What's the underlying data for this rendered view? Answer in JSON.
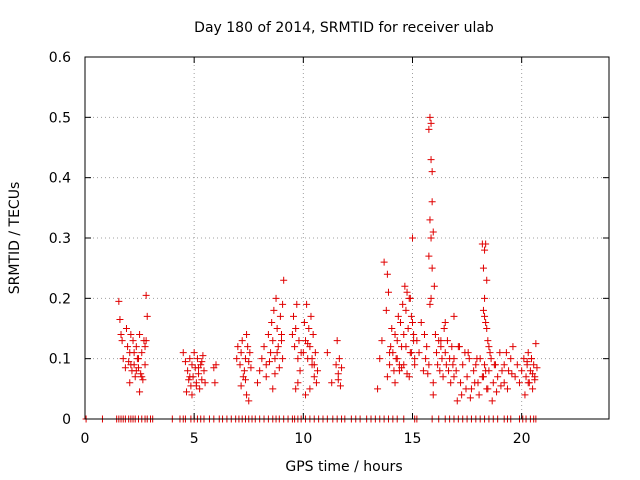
{
  "chart_data": {
    "type": "scatter",
    "title": "Day 180 of 2014, SRMTID for receiver ulab",
    "xlabel": "GPS time / hours",
    "ylabel": "SRMTID / TECUs",
    "xlim": [
      0,
      24
    ],
    "ylim": [
      0,
      0.6
    ],
    "xticks": [
      0,
      5,
      10,
      15,
      20
    ],
    "xtick_labels": [
      "0",
      "5",
      "10",
      "15",
      "20"
    ],
    "yticks": [
      0,
      0.1,
      0.2,
      0.3,
      0.4,
      0.5,
      0.6
    ],
    "ytick_labels": [
      "0",
      "0.1",
      "0.2",
      "0.3",
      "0.4",
      "0.5",
      "0.6"
    ],
    "grid": true,
    "marker": "+",
    "color": "#e00000",
    "series": [
      {
        "name": "SRMTID",
        "x": [
          0.05,
          0.8,
          1.45,
          1.55,
          1.65,
          1.75,
          1.85,
          2.0,
          2.1,
          2.2,
          2.3,
          2.45,
          2.6,
          2.75,
          2.85,
          3.0,
          3.1,
          4.0,
          4.35,
          4.5,
          4.6,
          4.85,
          5.0,
          5.15,
          5.3,
          5.45,
          5.7,
          5.9,
          6.15,
          6.3,
          6.5,
          6.7,
          6.9,
          7.05,
          7.2,
          7.35,
          7.5,
          7.65,
          7.8,
          8.0,
          8.2,
          8.4,
          8.6,
          8.75,
          8.9,
          9.1,
          9.3,
          9.5,
          9.6,
          9.75,
          9.9,
          10.1,
          10.3,
          10.5,
          10.7,
          10.9,
          11.1,
          11.35,
          11.55,
          11.75,
          11.9,
          12.2,
          12.4,
          12.6,
          12.9,
          13.1,
          13.3,
          13.5,
          13.7,
          13.9,
          14.1,
          14.3,
          14.6,
          15.1,
          15.2,
          15.9,
          16.2,
          16.5,
          16.7,
          16.9,
          17.1,
          17.3,
          17.5,
          17.7,
          17.9,
          18.1,
          18.3,
          18.5,
          18.7,
          18.9,
          19.2,
          19.35,
          19.5,
          19.9,
          20.05,
          20.2,
          20.4,
          20.55,
          20.65,
          1.55,
          1.6,
          1.7,
          1.75,
          1.85,
          1.9,
          1.95,
          2.0,
          2.05,
          2.1,
          2.15,
          2.2,
          2.25,
          2.3,
          2.35,
          2.4,
          2.45,
          2.5,
          2.55,
          2.6,
          2.65,
          2.7,
          2.75,
          2.8,
          2.85,
          1.65,
          2.25,
          2.45,
          2.75,
          2.1,
          2.35,
          2.6,
          2.8,
          2.05,
          2.5,
          4.5,
          4.6,
          4.7,
          4.75,
          4.8,
          4.85,
          4.9,
          4.95,
          5.0,
          5.05,
          5.1,
          5.15,
          5.2,
          5.25,
          5.3,
          5.35,
          5.4,
          5.45,
          5.5,
          4.65,
          4.9,
          5.2,
          5.35,
          4.8,
          5.1,
          5.9,
          6.0,
          5.95,
          6.95,
          7.0,
          7.1,
          7.15,
          7.2,
          7.3,
          7.35,
          7.4,
          7.45,
          7.5,
          7.55,
          7.6,
          7.25,
          7.4,
          7.5,
          7.15,
          7.35,
          7.9,
          8.0,
          8.1,
          8.2,
          8.3,
          8.4,
          8.5,
          8.55,
          8.6,
          8.65,
          8.7,
          8.75,
          8.8,
          8.85,
          8.9,
          8.95,
          9.0,
          9.05,
          9.1,
          8.3,
          8.6,
          8.8,
          9.0,
          8.45,
          8.7,
          9.05,
          9.5,
          9.55,
          9.6,
          9.65,
          9.7,
          9.75,
          9.8,
          9.85,
          9.9,
          9.65,
          9.75,
          10.0,
          10.05,
          10.1,
          10.15,
          10.2,
          10.25,
          10.3,
          10.35,
          10.4,
          10.45,
          10.5,
          10.55,
          10.6,
          10.65,
          10.1,
          10.3,
          10.5,
          10.2,
          10.4,
          11.1,
          11.3,
          11.5,
          11.55,
          11.6,
          11.65,
          11.7,
          11.75,
          11.6,
          13.4,
          13.5,
          13.6,
          13.7,
          13.8,
          13.85,
          13.9,
          13.95,
          14.0,
          14.05,
          14.1,
          14.15,
          14.2,
          14.25,
          14.3,
          14.35,
          14.4,
          14.45,
          14.5,
          14.55,
          14.6,
          14.65,
          14.7,
          14.75,
          14.8,
          14.85,
          14.9,
          14.95,
          15.0,
          15.05,
          15.1,
          13.85,
          13.95,
          14.2,
          14.4,
          14.6,
          14.7,
          14.85,
          14.95,
          15.0,
          15.05,
          14.3,
          14.5,
          14.75,
          14.9,
          15.1,
          15.2,
          15.3,
          15.4,
          15.5,
          15.55,
          15.6,
          15.65,
          15.7,
          15.75,
          15.8,
          15.85,
          15.9,
          15.95,
          16.0,
          16.05,
          16.1,
          16.15,
          16.2,
          16.25,
          16.3,
          16.35,
          16.4,
          16.45,
          16.5,
          16.55,
          16.6,
          16.65,
          16.7,
          16.75,
          16.8,
          16.85,
          16.9,
          15.75,
          15.8,
          15.85,
          15.9,
          15.8,
          15.85,
          15.9,
          15.75,
          15.85,
          15.95,
          16.5,
          16.9,
          15.95,
          16.3,
          16.9,
          17.0,
          17.1,
          17.2,
          17.3,
          17.4,
          17.5,
          17.6,
          17.7,
          17.8,
          17.9,
          18.0,
          18.1,
          18.2,
          18.3,
          18.4,
          18.5,
          18.6,
          18.7,
          18.8,
          18.9,
          19.0,
          19.1,
          19.2,
          17.05,
          17.25,
          17.45,
          17.65,
          17.85,
          18.05,
          18.25,
          18.45,
          18.65,
          18.85,
          19.05,
          17.15,
          17.55,
          17.95,
          18.35,
          18.75,
          18.2,
          18.25,
          18.3,
          18.35,
          18.4,
          18.3,
          18.25,
          18.35,
          18.4,
          18.45,
          18.5,
          18.55,
          18.3,
          19.2,
          19.3,
          19.4,
          19.5,
          19.6,
          19.7,
          19.8,
          19.9,
          19.35,
          19.55,
          20.0,
          20.1,
          20.2,
          20.25,
          20.3,
          20.35,
          20.4,
          20.45,
          20.5,
          20.55,
          20.6,
          20.65,
          20.7,
          20.15,
          20.3,
          20.45,
          20.6,
          20.25,
          20.5
        ],
        "y": [
          0,
          0,
          0,
          0,
          0,
          0,
          0,
          0,
          0,
          0,
          0,
          0,
          0,
          0,
          0,
          0,
          0,
          0,
          0,
          0,
          0,
          0,
          0,
          0,
          0,
          0,
          0,
          0,
          0,
          0,
          0,
          0,
          0,
          0,
          0,
          0,
          0,
          0,
          0,
          0,
          0,
          0,
          0,
          0,
          0,
          0,
          0,
          0,
          0,
          0,
          0,
          0,
          0,
          0,
          0,
          0,
          0,
          0,
          0,
          0,
          0,
          0,
          0,
          0,
          0,
          0,
          0,
          0,
          0,
          0,
          0,
          0,
          0,
          0,
          0,
          0,
          0,
          0,
          0,
          0,
          0,
          0,
          0,
          0,
          0,
          0,
          0,
          0,
          0,
          0,
          0,
          0,
          0,
          0,
          0,
          0,
          0,
          0,
          0,
          0.195,
          0.165,
          0.13,
          0.1,
          0.085,
          0.15,
          0.12,
          0.095,
          0.11,
          0.14,
          0.08,
          0.13,
          0.09,
          0.07,
          0.12,
          0.1,
          0.085,
          0.14,
          0.075,
          0.11,
          0.065,
          0.13,
          0.09,
          0.205,
          0.17,
          0.14,
          0.11,
          0.1,
          0.12,
          0.09,
          0.08,
          0.07,
          0.13,
          0.06,
          0.045,
          0.11,
          0.095,
          0.08,
          0.065,
          0.1,
          0.055,
          0.09,
          0.07,
          0.11,
          0.085,
          0.06,
          0.1,
          0.075,
          0.05,
          0.09,
          0.065,
          0.105,
          0.08,
          0.06,
          0.045,
          0.04,
          0.085,
          0.095,
          0.07,
          0.055,
          0.085,
          0.09,
          0.06,
          0.1,
          0.12,
          0.09,
          0.11,
          0.13,
          0.08,
          0.1,
          0.14,
          0.12,
          0.095,
          0.11,
          0.085,
          0.07,
          0.04,
          0.03,
          0.055,
          0.065,
          0.06,
          0.08,
          0.1,
          0.12,
          0.09,
          0.14,
          0.11,
          0.16,
          0.13,
          0.18,
          0.1,
          0.2,
          0.15,
          0.12,
          0.085,
          0.17,
          0.13,
          0.19,
          0.23,
          0.07,
          0.05,
          0.11,
          0.14,
          0.095,
          0.075,
          0.1,
          0.14,
          0.17,
          0.12,
          0.15,
          0.19,
          0.1,
          0.13,
          0.08,
          0.11,
          0.05,
          0.06,
          0.11,
          0.16,
          0.13,
          0.19,
          0.1,
          0.15,
          0.12,
          0.17,
          0.09,
          0.14,
          0.07,
          0.11,
          0.06,
          0.08,
          0.04,
          0.05,
          0.09,
          0.125,
          0.1,
          0.11,
          0.06,
          0.09,
          0.13,
          0.075,
          0.1,
          0.055,
          0.085,
          0.065,
          0.05,
          0.1,
          0.13,
          0.26,
          0.18,
          0.24,
          0.21,
          0.09,
          0.12,
          0.15,
          0.11,
          0.08,
          0.14,
          0.1,
          0.13,
          0.17,
          0.09,
          0.16,
          0.12,
          0.19,
          0.14,
          0.22,
          0.18,
          0.21,
          0.15,
          0.2,
          0.11,
          0.17,
          0.3,
          0.13,
          0.1,
          0.07,
          0.11,
          0.06,
          0.08,
          0.09,
          0.12,
          0.07,
          0.11,
          0.16,
          0.14,
          0.1,
          0.085,
          0.075,
          0.2,
          0.09,
          0.13,
          0.11,
          0.16,
          0.08,
          0.14,
          0.1,
          0.12,
          0.075,
          0.09,
          0.19,
          0.43,
          0.36,
          0.31,
          0.22,
          0.14,
          0.11,
          0.09,
          0.13,
          0.08,
          0.12,
          0.1,
          0.07,
          0.15,
          0.11,
          0.09,
          0.13,
          0.08,
          0.1,
          0.06,
          0.12,
          0.09,
          0.07,
          0.48,
          0.5,
          0.49,
          0.41,
          0.33,
          0.3,
          0.25,
          0.27,
          0.2,
          0.06,
          0.16,
          0.17,
          0.04,
          0.13,
          0.1,
          0.08,
          0.12,
          0.06,
          0.09,
          0.11,
          0.07,
          0.1,
          0.05,
          0.08,
          0.09,
          0.06,
          0.1,
          0.07,
          0.09,
          0.05,
          0.08,
          0.1,
          0.06,
          0.09,
          0.07,
          0.11,
          0.08,
          0.06,
          0.03,
          0.04,
          0.05,
          0.035,
          0.06,
          0.04,
          0.07,
          0.05,
          0.03,
          0.045,
          0.055,
          0.12,
          0.11,
          0.1,
          0.08,
          0.09,
          0.29,
          0.25,
          0.28,
          0.29,
          0.23,
          0.2,
          0.18,
          0.16,
          0.15,
          0.13,
          0.12,
          0.11,
          0.17,
          0.09,
          0.11,
          0.08,
          0.1,
          0.12,
          0.07,
          0.09,
          0.06,
          0.05,
          0.075,
          0.08,
          0.1,
          0.07,
          0.09,
          0.11,
          0.06,
          0.08,
          0.1,
          0.05,
          0.09,
          0.07,
          0.125,
          0.085,
          0.04,
          0.06,
          0.1,
          0.065,
          0.095,
          0.075
        ]
      }
    ]
  }
}
